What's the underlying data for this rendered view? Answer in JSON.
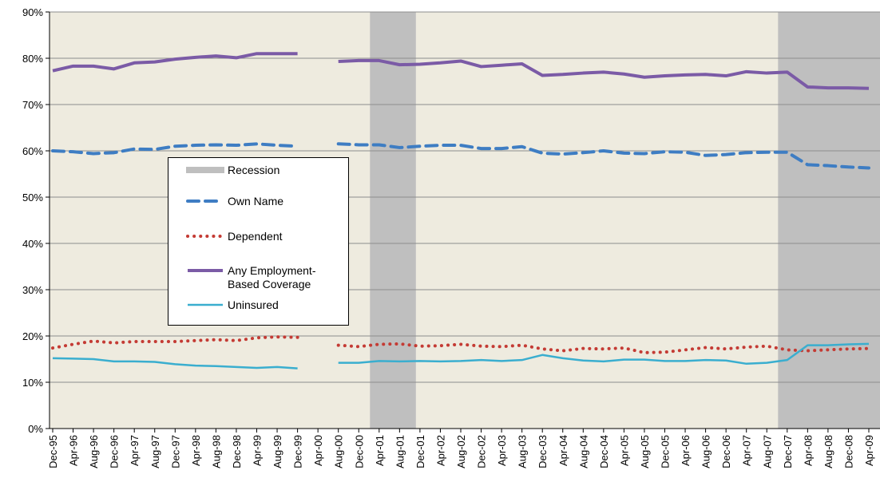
{
  "chart_data": {
    "type": "line",
    "categories": [
      "Dec-95",
      "Apr-96",
      "Aug-96",
      "Dec-96",
      "Apr-97",
      "Aug-97",
      "Dec-97",
      "Apr-98",
      "Aug-98",
      "Dec-98",
      "Apr-99",
      "Aug-99",
      "Dec-99",
      "Apr-00",
      "Aug-00",
      "Dec-00",
      "Apr-01",
      "Aug-01",
      "Dec-01",
      "Apr-02",
      "Aug-02",
      "Dec-02",
      "Apr-03",
      "Aug-03",
      "Dec-03",
      "Apr-04",
      "Aug-04",
      "Dec-04",
      "Apr-05",
      "Aug-05",
      "Dec-05",
      "Apr-06",
      "Aug-06",
      "Dec-06",
      "Apr-07",
      "Aug-07",
      "Dec-07",
      "Apr-08",
      "Aug-08",
      "Dec-08",
      "Apr-09"
    ],
    "recessions": {
      "name": "Recession",
      "color": "#bfbfbf",
      "spans": [
        [
          "Apr-01",
          "Dec-01"
        ],
        [
          "Dec-07",
          "Apr-09"
        ]
      ]
    },
    "series": [
      {
        "name": "Own Name",
        "color": "#3e7dc3",
        "style": "dash",
        "width": 4,
        "values": [
          60.0,
          59.8,
          59.4,
          59.6,
          60.4,
          60.3,
          61.0,
          61.2,
          61.3,
          61.2,
          61.5,
          61.2,
          61.0,
          null,
          61.5,
          61.3,
          61.3,
          60.7,
          61.0,
          61.2,
          61.2,
          60.5,
          60.5,
          60.9,
          59.5,
          59.3,
          59.6,
          60.0,
          59.5,
          59.4,
          59.8,
          59.7,
          59.0,
          59.2,
          59.6,
          59.7,
          59.7,
          57.0,
          56.8,
          56.5,
          56.3
        ]
      },
      {
        "name": "Dependent",
        "color": "#c43b34",
        "style": "dot",
        "width": 4,
        "values": [
          17.4,
          18.2,
          18.9,
          18.5,
          18.8,
          18.8,
          18.8,
          19.0,
          19.2,
          19.0,
          19.6,
          19.8,
          19.7,
          null,
          18.0,
          17.7,
          18.2,
          18.3,
          17.8,
          17.9,
          18.2,
          17.8,
          17.7,
          18.0,
          17.2,
          16.8,
          17.3,
          17.2,
          17.4,
          16.4,
          16.5,
          17.0,
          17.5,
          17.2,
          17.6,
          17.8,
          17.0,
          16.8,
          17.0,
          17.2,
          17.3
        ]
      },
      {
        "name": "Any Employment-Based Coverage",
        "color": "#7b5ba6",
        "style": "solid",
        "width": 4,
        "values": [
          77.3,
          78.3,
          78.3,
          77.7,
          79.0,
          79.2,
          79.8,
          80.2,
          80.5,
          80.1,
          81.0,
          81.0,
          81.0,
          null,
          79.3,
          79.5,
          79.5,
          78.6,
          78.7,
          79.0,
          79.4,
          78.2,
          78.5,
          78.8,
          76.3,
          76.5,
          76.8,
          77.0,
          76.6,
          75.9,
          76.2,
          76.4,
          76.5,
          76.2,
          77.1,
          76.8,
          77.0,
          73.8,
          73.6,
          73.6,
          73.5
        ]
      },
      {
        "name": "Uninsured",
        "color": "#3aaecf",
        "style": "solid",
        "width": 2.5,
        "values": [
          15.2,
          15.1,
          15.0,
          14.5,
          14.5,
          14.4,
          13.9,
          13.6,
          13.5,
          13.3,
          13.1,
          13.3,
          13.0,
          null,
          14.2,
          14.2,
          14.6,
          14.5,
          14.6,
          14.5,
          14.6,
          14.8,
          14.6,
          14.8,
          15.9,
          15.2,
          14.7,
          14.5,
          14.9,
          14.9,
          14.6,
          14.6,
          14.8,
          14.7,
          14.0,
          14.2,
          14.8,
          18.0,
          18.0,
          18.2,
          18.3
        ]
      }
    ],
    "ylim": [
      0,
      90
    ],
    "yticks": [
      {
        "value": 0,
        "label": "0%"
      },
      {
        "value": 10,
        "label": "10%"
      },
      {
        "value": 20,
        "label": "20%"
      },
      {
        "value": 30,
        "label": "30%"
      },
      {
        "value": 40,
        "label": "40%"
      },
      {
        "value": 50,
        "label": "50%"
      },
      {
        "value": 60,
        "label": "60%"
      },
      {
        "value": 70,
        "label": "70%"
      },
      {
        "value": 80,
        "label": "80%"
      },
      {
        "value": 90,
        "label": "90%"
      }
    ],
    "grid": true,
    "background": "#eeebdf"
  }
}
